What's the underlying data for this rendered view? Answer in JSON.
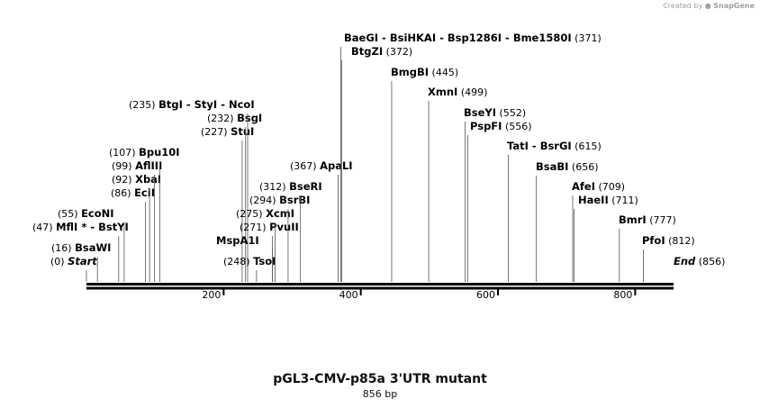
{
  "header": {
    "created_by": "Created by",
    "brand": "SnapGene"
  },
  "map": {
    "title": "pGL3-CMV-p85a 3'UTR mutant",
    "length_label": "856 bp",
    "length": 856,
    "ticks": [
      {
        "value": 200,
        "label": "200"
      },
      {
        "value": 400,
        "label": "400"
      },
      {
        "value": 600,
        "label": "600"
      },
      {
        "value": 800,
        "label": "800"
      }
    ],
    "features": [
      {
        "id": "start",
        "parts": [
          {
            "name": "Start",
            "italic": true
          }
        ],
        "pos": 0,
        "pos_label": "(0)",
        "side": "left"
      },
      {
        "id": "bsawi",
        "parts": [
          {
            "name": "BsaWI"
          }
        ],
        "pos": 16,
        "pos_label": "(16)",
        "side": "left"
      },
      {
        "id": "mlfi",
        "parts": [
          {
            "name": "MflI *"
          },
          {
            "name": "BstYI"
          }
        ],
        "pos": 47,
        "pos_label": "(47)",
        "side": "left"
      },
      {
        "id": "econi",
        "parts": [
          {
            "name": "EcoNI"
          }
        ],
        "pos": 55,
        "pos_label": "(55)",
        "side": "left"
      },
      {
        "id": "ecii",
        "parts": [
          {
            "name": "EciI"
          }
        ],
        "pos": 86,
        "pos_label": "(86)",
        "side": "left"
      },
      {
        "id": "xbai",
        "parts": [
          {
            "name": "XbaI"
          }
        ],
        "pos": 92,
        "pos_label": "(92)",
        "side": "left"
      },
      {
        "id": "afliii",
        "parts": [
          {
            "name": "AflIII"
          }
        ],
        "pos": 99,
        "pos_label": "(99)",
        "side": "left"
      },
      {
        "id": "bpu10i",
        "parts": [
          {
            "name": "Bpu10I"
          }
        ],
        "pos": 107,
        "pos_label": "(107)",
        "side": "left"
      },
      {
        "id": "stui",
        "parts": [
          {
            "name": "StuI"
          }
        ],
        "pos": 227,
        "pos_label": "(227)",
        "side": "left"
      },
      {
        "id": "bsgi",
        "parts": [
          {
            "name": "BsgI"
          }
        ],
        "pos": 232,
        "pos_label": "(232)",
        "side": "left"
      },
      {
        "id": "btgi",
        "parts": [
          {
            "name": "BtgI"
          },
          {
            "name": "StyI"
          },
          {
            "name": "NcoI"
          }
        ],
        "pos": 235,
        "pos_label": "(235)",
        "side": "left"
      },
      {
        "id": "tsoi",
        "parts": [
          {
            "name": "TsoI"
          }
        ],
        "pos": 248,
        "pos_label": "(248)",
        "side": "left"
      },
      {
        "id": "mspa1i",
        "parts": [
          {
            "name": "MspA1I"
          }
        ],
        "pos": 271,
        "pos_label": "",
        "side": "left"
      },
      {
        "id": "pvuii",
        "parts": [
          {
            "name": "PvuII"
          }
        ],
        "pos": 271,
        "pos_label": "(271)",
        "side": "left"
      },
      {
        "id": "xcmi",
        "parts": [
          {
            "name": "XcmI"
          }
        ],
        "pos": 275,
        "pos_label": "(275)",
        "side": "left"
      },
      {
        "id": "bsrbi",
        "parts": [
          {
            "name": "BsrBI"
          }
        ],
        "pos": 294,
        "pos_label": "(294)",
        "side": "left"
      },
      {
        "id": "bseri",
        "parts": [
          {
            "name": "BseRI"
          }
        ],
        "pos": 312,
        "pos_label": "(312)",
        "side": "left"
      },
      {
        "id": "apali",
        "parts": [
          {
            "name": "ApaLI"
          }
        ],
        "pos": 367,
        "pos_label": "(367)",
        "side": "left"
      },
      {
        "id": "baegi",
        "parts": [
          {
            "name": "BaeGI"
          },
          {
            "name": "BsiHKAI"
          },
          {
            "name": "Bsp1286I"
          },
          {
            "name": "Bme1580I"
          }
        ],
        "pos": 371,
        "pos_label": "(371)",
        "side": "right"
      },
      {
        "id": "btgzi",
        "parts": [
          {
            "name": "BtgZI"
          }
        ],
        "pos": 372,
        "pos_label": "(372)",
        "side": "right"
      },
      {
        "id": "bmgbi",
        "parts": [
          {
            "name": "BmgBI"
          }
        ],
        "pos": 445,
        "pos_label": "(445)",
        "side": "right"
      },
      {
        "id": "xmni",
        "parts": [
          {
            "name": "XmnI"
          }
        ],
        "pos": 499,
        "pos_label": "(499)",
        "side": "right"
      },
      {
        "id": "bseyi",
        "parts": [
          {
            "name": "BseYI"
          }
        ],
        "pos": 552,
        "pos_label": "(552)",
        "side": "right"
      },
      {
        "id": "pspfi",
        "parts": [
          {
            "name": "PspFI"
          }
        ],
        "pos": 556,
        "pos_label": "(556)",
        "side": "right"
      },
      {
        "id": "tati",
        "parts": [
          {
            "name": "TatI"
          },
          {
            "name": "BsrGI"
          }
        ],
        "pos": 615,
        "pos_label": "(615)",
        "side": "right"
      },
      {
        "id": "bsabi",
        "parts": [
          {
            "name": "BsaBI"
          }
        ],
        "pos": 656,
        "pos_label": "(656)",
        "side": "right"
      },
      {
        "id": "afei",
        "parts": [
          {
            "name": "AfeI"
          }
        ],
        "pos": 709,
        "pos_label": "(709)",
        "side": "right"
      },
      {
        "id": "haeii",
        "parts": [
          {
            "name": "HaeII"
          }
        ],
        "pos": 711,
        "pos_label": "(711)",
        "side": "right"
      },
      {
        "id": "bmri",
        "parts": [
          {
            "name": "BmrI"
          }
        ],
        "pos": 777,
        "pos_label": "(777)",
        "side": "right"
      },
      {
        "id": "pfoi",
        "parts": [
          {
            "name": "PfoI"
          }
        ],
        "pos": 812,
        "pos_label": "(812)",
        "side": "right"
      },
      {
        "id": "end",
        "parts": [
          {
            "name": "End",
            "italic": true
          }
        ],
        "pos": 856,
        "pos_label": "(856)",
        "side": "right"
      }
    ]
  }
}
